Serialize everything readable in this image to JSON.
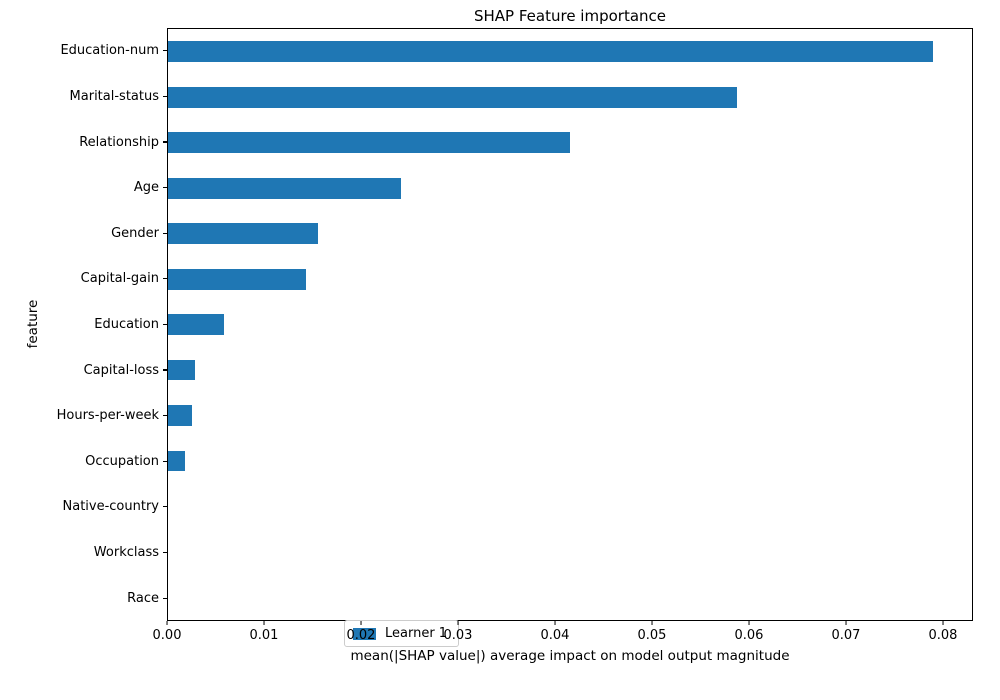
{
  "figure": {
    "title": "SHAP Feature importance",
    "xlabel": "mean(|SHAP value|) average impact on model output magnitude",
    "ylabel": "feature",
    "legend": {
      "label": "Learner 1"
    }
  },
  "chart_data": {
    "type": "bar",
    "orientation": "horizontal",
    "title": "SHAP Feature importance",
    "xlabel": "mean(|SHAP value|) average impact on model output magnitude",
    "ylabel": "feature",
    "categories": [
      "Education-num",
      "Marital-status",
      "Relationship",
      "Age",
      "Gender",
      "Capital-gain",
      "Education",
      "Capital-loss",
      "Hours-per-week",
      "Occupation",
      "Native-country",
      "Workclass",
      "Race"
    ],
    "series": [
      {
        "name": "Learner 1",
        "values": [
          0.0791,
          0.0588,
          0.0415,
          0.0241,
          0.0155,
          0.0143,
          0.0058,
          0.0028,
          0.0025,
          0.0018,
          0.0,
          0.0,
          0.0
        ]
      }
    ],
    "xlim": [
      0.0,
      0.0831
    ],
    "xticks": [
      0.0,
      0.01,
      0.02,
      0.03,
      0.04,
      0.05,
      0.06,
      0.07,
      0.08
    ],
    "xtick_labels": [
      "0.00",
      "0.01",
      "0.02",
      "0.03",
      "0.04",
      "0.05",
      "0.06",
      "0.07",
      "0.08"
    ],
    "bar_color": "#1f77b4",
    "legend_position": "lower left",
    "grid": false,
    "background_color": "#ffffff",
    "spine_color": "#000000"
  }
}
